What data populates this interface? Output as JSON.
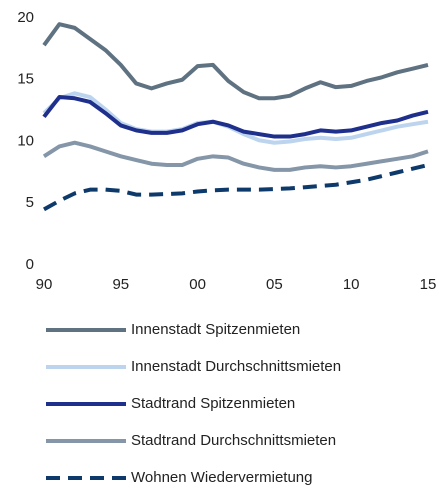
{
  "chart_data": {
    "type": "line",
    "x": [
      1990,
      1991,
      1992,
      1993,
      1994,
      1995,
      1996,
      1997,
      1998,
      1999,
      2000,
      2001,
      2002,
      2003,
      2004,
      2005,
      2006,
      2007,
      2008,
      2009,
      2010,
      2011,
      2012,
      2013,
      2014,
      2015
    ],
    "series": [
      {
        "name": "Innenstadt Spitzenmieten",
        "color": "#5f7282",
        "values": [
          17.8,
          19.5,
          19.2,
          18.3,
          17.4,
          16.2,
          14.7,
          14.3,
          14.7,
          15.0,
          16.1,
          16.2,
          14.9,
          14.0,
          13.5,
          13.5,
          13.7,
          14.3,
          14.8,
          14.4,
          14.5,
          14.9,
          15.2,
          15.6,
          15.9,
          16.2
        ]
      },
      {
        "name": "Innenstadt Durchschnittsmieten",
        "color": "#bcd4ee",
        "values": [
          12.3,
          13.5,
          13.9,
          13.6,
          12.6,
          11.5,
          11.0,
          10.8,
          10.8,
          11.0,
          11.5,
          11.6,
          11.2,
          10.6,
          10.1,
          9.9,
          10.0,
          10.2,
          10.3,
          10.2,
          10.3,
          10.6,
          10.9,
          11.2,
          11.4,
          11.6
        ]
      },
      {
        "name": "Stadtrand Spitzenmieten",
        "color": "#1f2f8c",
        "values": [
          12.0,
          13.6,
          13.5,
          13.2,
          12.3,
          11.3,
          10.9,
          10.7,
          10.7,
          10.9,
          11.4,
          11.6,
          11.3,
          10.8,
          10.6,
          10.4,
          10.4,
          10.6,
          10.9,
          10.8,
          10.9,
          11.2,
          11.5,
          11.7,
          12.1,
          12.4
        ]
      },
      {
        "name": "Stadtrand Durchschnittsmieten",
        "color": "#8496a8",
        "values": [
          8.8,
          9.6,
          9.9,
          9.6,
          9.2,
          8.8,
          8.5,
          8.2,
          8.1,
          8.1,
          8.6,
          8.8,
          8.7,
          8.2,
          7.9,
          7.7,
          7.7,
          7.9,
          8.0,
          7.9,
          8.0,
          8.2,
          8.4,
          8.6,
          8.8,
          9.2
        ]
      },
      {
        "name": "Wohnen Wiedervermietung",
        "color": "#0e3a6b",
        "dashed": true,
        "values": [
          4.5,
          5.2,
          5.8,
          6.1,
          6.1,
          6.0,
          5.7,
          5.7,
          5.75,
          5.8,
          5.95,
          6.05,
          6.1,
          6.1,
          6.1,
          6.15,
          6.2,
          6.3,
          6.4,
          6.5,
          6.7,
          6.9,
          7.2,
          7.5,
          7.8,
          8.1
        ]
      }
    ],
    "xlim": [
      1990,
      2015
    ],
    "xticks": [
      {
        "value": 1990,
        "label": "90"
      },
      {
        "value": 1995,
        "label": "95"
      },
      {
        "value": 2000,
        "label": "00"
      },
      {
        "value": 2005,
        "label": "05"
      },
      {
        "value": 2010,
        "label": "10"
      },
      {
        "value": 2015,
        "label": "15"
      }
    ],
    "ylim": [
      0,
      20
    ],
    "yticks": [
      0,
      5,
      10,
      15,
      20
    ],
    "grid": false,
    "legend": "bottom"
  }
}
